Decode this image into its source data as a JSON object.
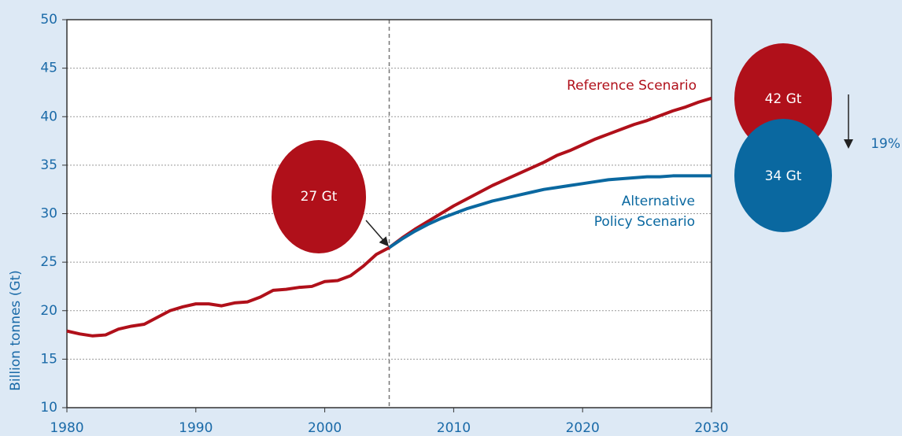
{
  "chart_data": {
    "type": "line",
    "y_label": "Billion tonnes (Gt)",
    "x": [
      1980,
      1981,
      1982,
      1983,
      1984,
      1985,
      1986,
      1987,
      1988,
      1989,
      1990,
      1991,
      1992,
      1993,
      1994,
      1995,
      1996,
      1997,
      1998,
      1999,
      2000,
      2001,
      2002,
      2003,
      2004,
      2005,
      2006,
      2007,
      2008,
      2009,
      2010,
      2011,
      2012,
      2013,
      2014,
      2015,
      2016,
      2017,
      2018,
      2019,
      2020,
      2021,
      2022,
      2023,
      2024,
      2025,
      2026,
      2027,
      2028,
      2029,
      2030
    ],
    "series": [
      {
        "name": "Reference Scenario",
        "color": "#b0101a",
        "values": [
          17.9,
          17.6,
          17.4,
          17.5,
          18.1,
          18.4,
          18.6,
          19.3,
          20.0,
          20.4,
          20.7,
          20.7,
          20.5,
          20.8,
          20.9,
          21.4,
          22.1,
          22.2,
          22.4,
          22.5,
          23.0,
          23.1,
          23.6,
          24.6,
          25.8,
          26.5,
          27.5,
          28.4,
          29.2,
          30.0,
          30.8,
          31.5,
          32.2,
          32.9,
          33.5,
          34.1,
          34.7,
          35.3,
          36.0,
          36.5,
          37.1,
          37.7,
          38.2,
          38.7,
          39.2,
          39.6,
          40.1,
          40.6,
          41.0,
          41.5,
          41.9
        ]
      },
      {
        "name": "Alternative Policy Scenario",
        "color": "#0a68a0",
        "values": [
          null,
          null,
          null,
          null,
          null,
          null,
          null,
          null,
          null,
          null,
          null,
          null,
          null,
          null,
          null,
          null,
          null,
          null,
          null,
          null,
          null,
          null,
          null,
          null,
          null,
          26.5,
          27.4,
          28.2,
          28.9,
          29.5,
          30.0,
          30.5,
          30.9,
          31.3,
          31.6,
          31.9,
          32.2,
          32.5,
          32.7,
          32.9,
          33.1,
          33.3,
          33.5,
          33.6,
          33.7,
          33.8,
          33.8,
          33.9,
          33.9,
          33.9,
          33.9
        ]
      }
    ],
    "series_labels": [
      [
        "Reference Scenario"
      ],
      [
        "Alternative",
        "Policy Scenario"
      ]
    ],
    "bubbles": [
      "27 Gt",
      "42 Gt",
      "34 Gt"
    ],
    "change_label": "19%",
    "marker_x": 2005,
    "xlim": [
      1980,
      2030
    ],
    "xticks": [
      1980,
      1990,
      2000,
      2010,
      2020,
      2030
    ],
    "ylim": [
      10,
      50
    ],
    "yticks": [
      10,
      15,
      20,
      25,
      30,
      35,
      40,
      45,
      50
    ],
    "grid": true
  }
}
